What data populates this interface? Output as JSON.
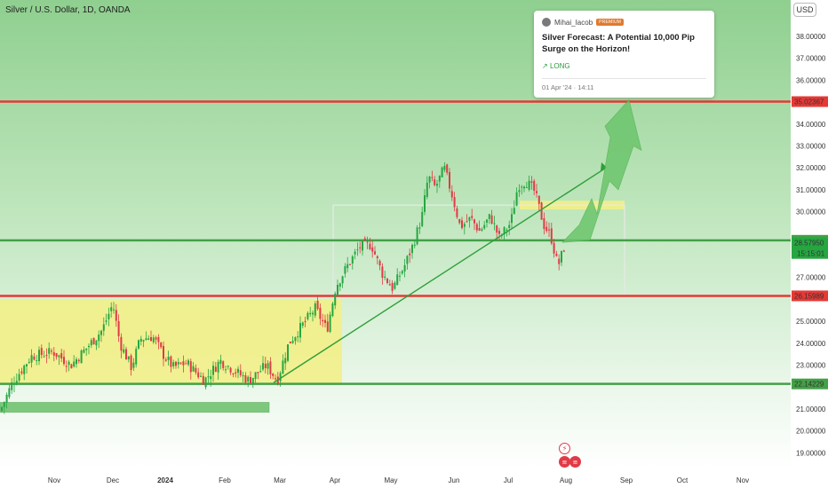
{
  "header": {
    "title": "Silver / U.S. Dollar, 1D, OANDA",
    "currency_button": "USD"
  },
  "idea_card": {
    "author": "Mihai_Iacob",
    "badge": "PREMIUM",
    "headline": "Silver Forecast: A Potential 10,000 Pip Surge on the Horizon!",
    "direction": "LONG",
    "date": "01 Apr '24 · 14:11"
  },
  "colors": {
    "background_top": "#8fcf8f",
    "background_bottom": "#ffffff",
    "up_candle": "#26a641",
    "down_candle": "#e03b46",
    "resistance_line": "#e53935",
    "support_line": "#43a047",
    "range_box": "#f2ef88",
    "arrow": "#6cc56c"
  },
  "chart_data": {
    "type": "candlestick",
    "symbol": "Silver / U.S. Dollar",
    "interval": "1D",
    "source": "OANDA",
    "currency": "USD",
    "x_tick_labels": [
      "Nov",
      "Dec",
      "2024",
      "Feb",
      "Mar",
      "Apr",
      "May",
      "Jun",
      "Jul",
      "Aug",
      "Sep",
      "Oct",
      "Nov"
    ],
    "y_tick_labels": [
      "19.00000",
      "20.00000",
      "21.00000",
      "23.00000",
      "24.00000",
      "25.00000",
      "27.00000",
      "30.00000",
      "31.00000",
      "32.00000",
      "33.00000",
      "34.00000",
      "36.00000",
      "37.00000",
      "38.00000"
    ],
    "ylim": [
      18.4,
      39.3
    ],
    "horizontal_levels": [
      {
        "label": "35.02367",
        "value": 35.02367,
        "color": "#e53935"
      },
      {
        "label": "28.69566",
        "value": 28.69566,
        "color": "#43a047"
      },
      {
        "label": "26.15989",
        "value": 26.15989,
        "color": "#e53935"
      },
      {
        "label": "22.14229",
        "value": 22.14229,
        "color": "#43a047"
      }
    ],
    "last_price": {
      "label": "28.57950",
      "value": 28.5795,
      "countdown": "15:15:01"
    },
    "grid": false,
    "legend": "none",
    "annotations": [
      "yellow accumulation range from the start of the chart to early April, 22.14 to 26.0",
      "rising trendline from the early March low to the projection arrow",
      "green projected path from the last price up to the 35.02367 target",
      "green zone near 21.0 under the range",
      "yellow zone near 30.2 between July and August"
    ]
  }
}
